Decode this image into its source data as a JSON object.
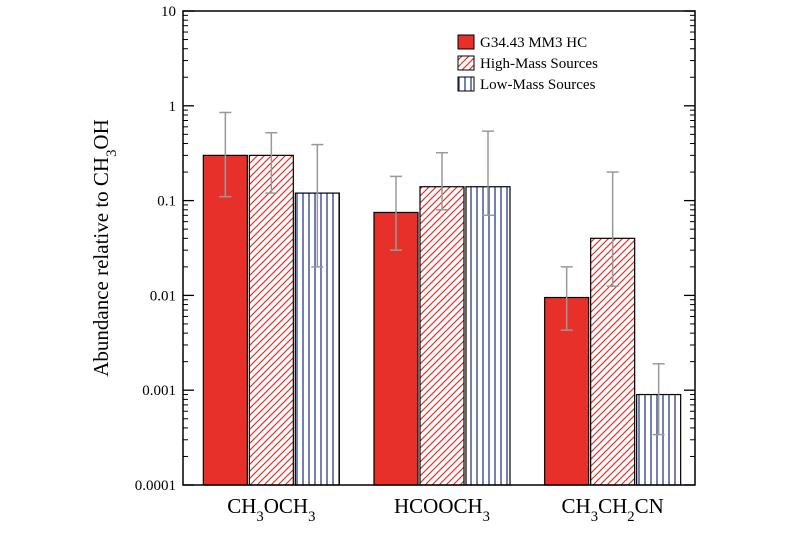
{
  "chart_data": {
    "type": "bar",
    "title": "",
    "xlabel": "",
    "ylabel": {
      "parts": [
        {
          "text": "Abundance relative to CH"
        },
        {
          "text": "3",
          "sub": true
        },
        {
          "text": "OH"
        }
      ]
    },
    "yscale": "log",
    "ylim": [
      0.0001,
      10
    ],
    "yticks": [
      {
        "value": 10,
        "label": "10"
      },
      {
        "value": 1,
        "label": "1"
      },
      {
        "value": 0.1,
        "label": "0.1"
      },
      {
        "value": 0.01,
        "label": "0.01"
      },
      {
        "value": 0.001,
        "label": "0.001"
      },
      {
        "value": 0.0001,
        "label": "0.0001"
      }
    ],
    "categories": [
      {
        "parts": [
          {
            "text": "CH"
          },
          {
            "text": "3",
            "sub": true
          },
          {
            "text": "OCH"
          },
          {
            "text": "3",
            "sub": true
          }
        ]
      },
      {
        "parts": [
          {
            "text": "HCOOCH"
          },
          {
            "text": "3",
            "sub": true
          }
        ]
      },
      {
        "parts": [
          {
            "text": "CH"
          },
          {
            "text": "3",
            "sub": true
          },
          {
            "text": "CH"
          },
          {
            "text": "2",
            "sub": true
          },
          {
            "text": "CN"
          }
        ]
      }
    ],
    "series": [
      {
        "name": "G34.43 MM3 HC",
        "fill": "solid",
        "color": "#e8302a",
        "values": [
          0.3,
          0.075,
          0.0095
        ],
        "err_low": [
          0.11,
          0.03,
          0.0043
        ],
        "err_high": [
          0.85,
          0.18,
          0.02
        ]
      },
      {
        "name": "High-Mass Sources",
        "fill": "diagonal-hatch",
        "color": "#e8302a",
        "values": [
          0.3,
          0.14,
          0.04
        ],
        "err_low": [
          0.12,
          0.08,
          0.0125
        ],
        "err_high": [
          0.52,
          0.32,
          0.2
        ]
      },
      {
        "name": "Low-Mass Sources",
        "fill": "vertical-hatch",
        "color": "#2a3c8c",
        "values": [
          0.12,
          0.14,
          0.0009
        ],
        "err_low": [
          0.02,
          0.07,
          0.00034
        ],
        "err_high": [
          0.39,
          0.54,
          0.0019
        ]
      }
    ],
    "legend_position": "top-right",
    "grid": false
  }
}
